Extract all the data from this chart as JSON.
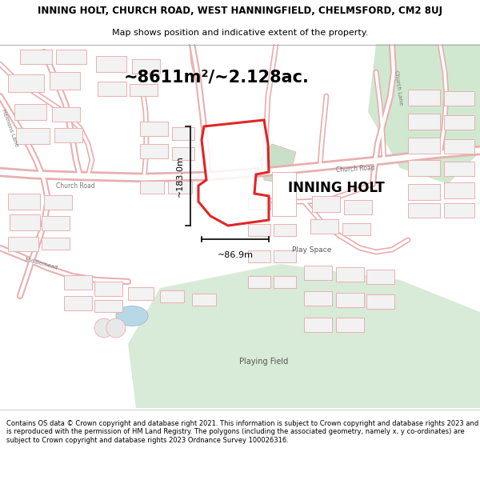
{
  "title_line1": "INNING HOLT, CHURCH ROAD, WEST HANNINGFIELD, CHELMSFORD, CM2 8UJ",
  "title_line2": "Map shows position and indicative extent of the property.",
  "area_text": "~8611m²/~2.128ac.",
  "property_label": "INNING HOLT",
  "dim_vertical": "~183.0m",
  "dim_horizontal": "~86.9m",
  "footer_text": "Contains OS data © Crown copyright and database right 2021. This information is subject to Crown copyright and database rights 2023 and is reproduced with the permission of HM Land Registry. The polygons (including the associated geometry, namely x, y co-ordinates) are subject to Crown copyright and database rights 2023 Ordnance Survey 100026316.",
  "map_bg": "#ffffff",
  "road_color": "#e8b0b0",
  "road_fill": "#f5eaea",
  "green_color": "#d0e8d0",
  "green_color2": "#c5dfc5",
  "blue_color": "#add8e6",
  "building_edge": "#e8b0b0",
  "building_fill": "#f2f2f2",
  "property_outline_color": "#dd0000",
  "dim_line_color": "#000000",
  "label_color": "#888888",
  "fig_width": 6.0,
  "fig_height": 6.25,
  "dpi": 100
}
